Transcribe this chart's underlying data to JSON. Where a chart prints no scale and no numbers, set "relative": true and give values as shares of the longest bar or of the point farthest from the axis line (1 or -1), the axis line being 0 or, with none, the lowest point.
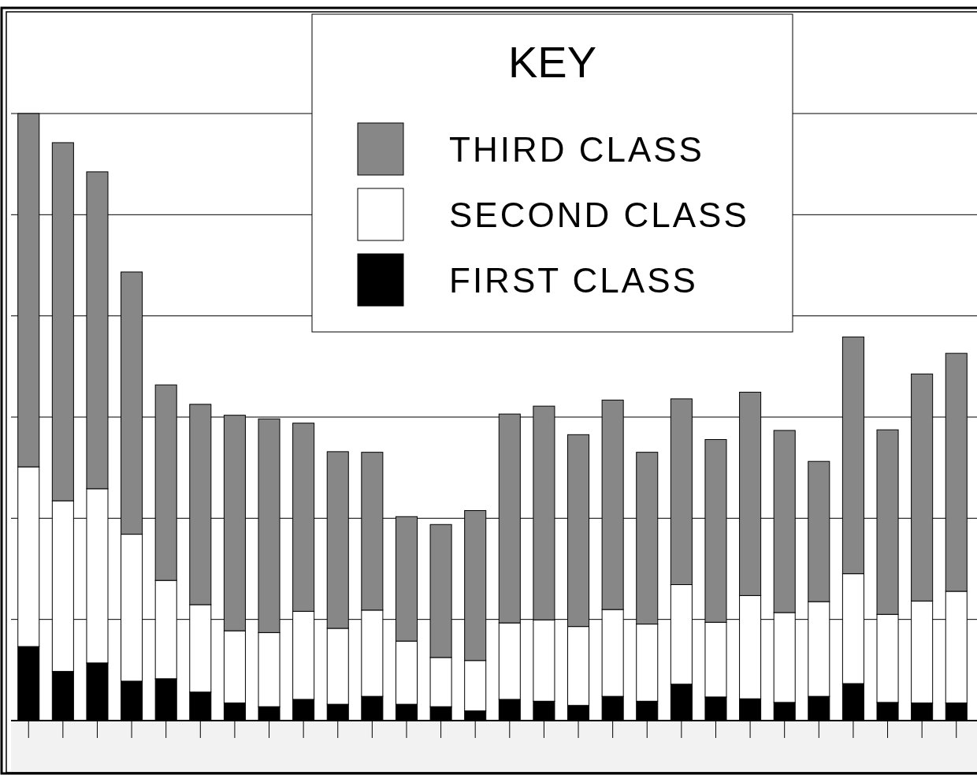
{
  "chart_data": {
    "type": "bar",
    "stacked": true,
    "relative": true,
    "grid": "y",
    "legend": "top",
    "legend_title": "KEY",
    "categories": [
      null,
      null,
      null,
      null,
      null,
      null,
      null,
      null,
      null,
      null,
      null,
      null,
      null,
      null,
      null,
      null,
      null,
      null,
      null,
      null,
      null,
      null,
      null,
      null,
      null,
      null,
      null,
      null
    ],
    "series": [
      {
        "name": "FIRST CLASS",
        "color": "#000000",
        "values": [
          0.122,
          0.081,
          0.095,
          0.065,
          0.069,
          0.047,
          0.029,
          0.023,
          0.035,
          0.027,
          0.04,
          0.027,
          0.023,
          0.016,
          0.035,
          0.032,
          0.025,
          0.04,
          0.032,
          0.06,
          0.039,
          0.036,
          0.03,
          0.04,
          0.061,
          0.03,
          0.029,
          0.029
        ]
      },
      {
        "name": "SECOND CLASS",
        "color": "#ffffff",
        "values": [
          0.296,
          0.281,
          0.287,
          0.242,
          0.162,
          0.144,
          0.119,
          0.122,
          0.145,
          0.125,
          0.142,
          0.104,
          0.081,
          0.083,
          0.126,
          0.134,
          0.13,
          0.143,
          0.127,
          0.164,
          0.123,
          0.17,
          0.148,
          0.156,
          0.181,
          0.145,
          0.168,
          0.184
        ]
      },
      {
        "name": "THIRD CLASS",
        "color": "#878787",
        "values": [
          0.582,
          0.59,
          0.522,
          0.432,
          0.322,
          0.33,
          0.355,
          0.352,
          0.31,
          0.291,
          0.26,
          0.205,
          0.219,
          0.247,
          0.344,
          0.352,
          0.316,
          0.345,
          0.283,
          0.306,
          0.301,
          0.335,
          0.3,
          0.231,
          0.39,
          0.304,
          0.374,
          0.392
        ]
      }
    ]
  }
}
